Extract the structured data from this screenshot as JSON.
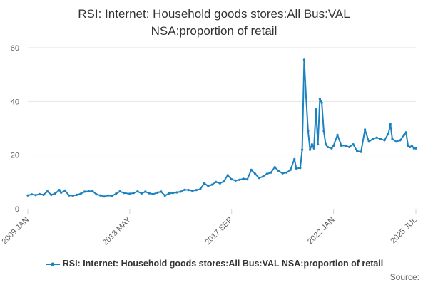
{
  "chart_data": {
    "type": "line",
    "title_lines": [
      "RSI: Internet: Household goods stores:All Bus:VAL",
      "NSA:proportion of retail"
    ],
    "xlabel": "",
    "ylabel": "",
    "x_tick_labels": [
      "2009 JAN",
      "2013 MAY",
      "2017 SEP",
      "2022 JAN",
      "2025 JUL"
    ],
    "x_tick_dates": [
      "2009-01",
      "2013-05",
      "2017-09",
      "2022-01",
      "2025-07"
    ],
    "y_ticks": [
      0,
      20,
      40,
      60
    ],
    "ylim": [
      0,
      60
    ],
    "xlim": [
      "2009-01",
      "2025-07"
    ],
    "grid": "horizontal",
    "legend_position": "bottom",
    "series": [
      {
        "name": "RSI: Internet: Household goods stores:All Bus:VAL NSA:proportion of retail",
        "color": "#1b82c0",
        "points": [
          [
            "2009-01",
            5.0
          ],
          [
            "2009-03",
            5.4
          ],
          [
            "2009-05",
            5.1
          ],
          [
            "2009-07",
            5.5
          ],
          [
            "2009-09",
            5.2
          ],
          [
            "2009-11",
            6.5
          ],
          [
            "2010-01",
            5.2
          ],
          [
            "2010-03",
            5.7
          ],
          [
            "2010-05",
            7.0
          ],
          [
            "2010-06",
            6.0
          ],
          [
            "2010-08",
            6.8
          ],
          [
            "2010-10",
            5.0
          ],
          [
            "2010-12",
            4.9
          ],
          [
            "2011-02",
            5.2
          ],
          [
            "2011-04",
            5.6
          ],
          [
            "2011-06",
            6.4
          ],
          [
            "2011-08",
            6.5
          ],
          [
            "2011-10",
            6.6
          ],
          [
            "2011-12",
            5.4
          ],
          [
            "2012-02",
            5.0
          ],
          [
            "2012-04",
            4.6
          ],
          [
            "2012-06",
            5.0
          ],
          [
            "2012-08",
            4.8
          ],
          [
            "2012-10",
            5.6
          ],
          [
            "2012-12",
            6.5
          ],
          [
            "2013-02",
            5.9
          ],
          [
            "2013-05",
            5.6
          ],
          [
            "2013-07",
            5.9
          ],
          [
            "2013-09",
            6.5
          ],
          [
            "2013-11",
            5.7
          ],
          [
            "2014-01",
            6.4
          ],
          [
            "2014-03",
            5.8
          ],
          [
            "2014-05",
            5.5
          ],
          [
            "2014-07",
            6.0
          ],
          [
            "2014-09",
            6.4
          ],
          [
            "2014-11",
            4.9
          ],
          [
            "2015-01",
            5.7
          ],
          [
            "2015-03",
            5.9
          ],
          [
            "2015-05",
            6.1
          ],
          [
            "2015-07",
            6.4
          ],
          [
            "2015-09",
            7.1
          ],
          [
            "2015-11",
            7.0
          ],
          [
            "2016-01",
            6.7
          ],
          [
            "2016-03",
            7.0
          ],
          [
            "2016-05",
            7.3
          ],
          [
            "2016-07",
            9.5
          ],
          [
            "2016-09",
            8.5
          ],
          [
            "2016-11",
            9.0
          ],
          [
            "2017-01",
            10.0
          ],
          [
            "2017-03",
            9.5
          ],
          [
            "2017-05",
            10.2
          ],
          [
            "2017-07",
            12.5
          ],
          [
            "2017-09",
            11.0
          ],
          [
            "2017-11",
            10.5
          ],
          [
            "2018-01",
            10.8
          ],
          [
            "2018-03",
            11.2
          ],
          [
            "2018-05",
            11.0
          ],
          [
            "2018-07",
            14.5
          ],
          [
            "2018-09",
            13.0
          ],
          [
            "2018-11",
            11.5
          ],
          [
            "2019-01",
            12.0
          ],
          [
            "2019-03",
            13.0
          ],
          [
            "2019-05",
            13.5
          ],
          [
            "2019-07",
            15.5
          ],
          [
            "2019-09",
            14.0
          ],
          [
            "2019-11",
            13.2
          ],
          [
            "2020-01",
            13.5
          ],
          [
            "2020-03",
            14.5
          ],
          [
            "2020-05",
            18.5
          ],
          [
            "2020-06",
            15.0
          ],
          [
            "2020-08",
            15.2
          ],
          [
            "2020-09",
            22.0
          ],
          [
            "2020-10",
            55.5
          ],
          [
            "2020-11",
            41.5
          ],
          [
            "2020-12",
            29.0
          ],
          [
            "2021-01",
            22.0
          ],
          [
            "2021-02",
            24.0
          ],
          [
            "2021-03",
            22.5
          ],
          [
            "2021-04",
            37.0
          ],
          [
            "2021-05",
            24.0
          ],
          [
            "2021-06",
            41.0
          ],
          [
            "2021-07",
            39.5
          ],
          [
            "2021-08",
            29.0
          ],
          [
            "2021-09",
            24.0
          ],
          [
            "2021-10",
            23.0
          ],
          [
            "2021-12",
            22.5
          ],
          [
            "2022-01",
            23.5
          ],
          [
            "2022-03",
            27.5
          ],
          [
            "2022-05",
            23.5
          ],
          [
            "2022-07",
            23.5
          ],
          [
            "2022-09",
            23.0
          ],
          [
            "2022-11",
            24.0
          ],
          [
            "2023-01",
            21.5
          ],
          [
            "2023-03",
            21.2
          ],
          [
            "2023-05",
            29.5
          ],
          [
            "2023-07",
            25.0
          ],
          [
            "2023-09",
            26.0
          ],
          [
            "2023-11",
            26.5
          ],
          [
            "2024-01",
            26.0
          ],
          [
            "2024-03",
            25.5
          ],
          [
            "2024-05",
            28.0
          ],
          [
            "2024-06",
            31.5
          ],
          [
            "2024-07",
            26.0
          ],
          [
            "2024-09",
            25.0
          ],
          [
            "2024-11",
            25.5
          ],
          [
            "2025-01",
            27.5
          ],
          [
            "2025-02",
            28.5
          ],
          [
            "2025-03",
            23.5
          ],
          [
            "2025-04",
            23.0
          ],
          [
            "2025-05",
            23.5
          ],
          [
            "2025-06",
            22.5
          ],
          [
            "2025-07",
            22.5
          ]
        ]
      }
    ]
  },
  "credits": "Source:"
}
